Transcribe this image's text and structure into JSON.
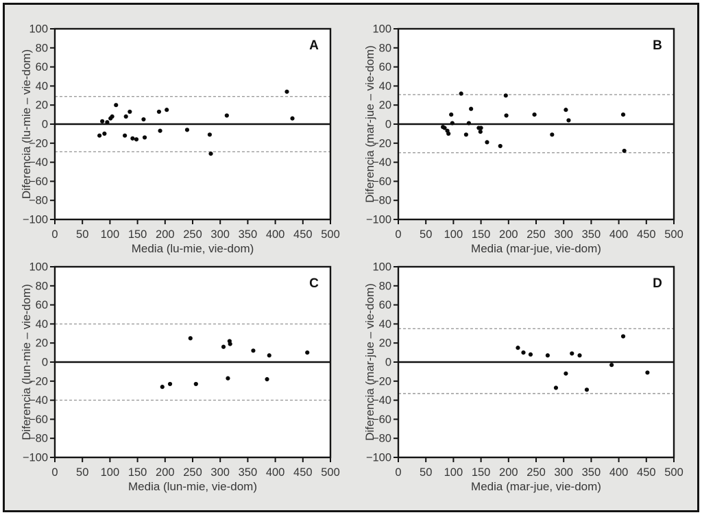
{
  "figure": {
    "background_color": "#e6e6e4",
    "frame_color": "#141414",
    "plot_background": "#ffffff",
    "point_color": "#0a0a0a",
    "mean_line_color": "#111111",
    "limit_line_color": "#9b9b9b",
    "text_color": "#363636"
  },
  "chart_data": [
    {
      "panel_label": "A",
      "type": "scatter",
      "xlabel": "Media (lu-mie, vie-dom)",
      "ylabel": "Diferencia (lu-mie – vie-dom)",
      "xlim": [
        0,
        500
      ],
      "ylim": [
        -100,
        100
      ],
      "xticks": [
        0,
        50,
        100,
        150,
        200,
        250,
        300,
        350,
        400,
        450,
        500
      ],
      "xtick_labels": [
        "0",
        "50",
        "100",
        "150",
        "200",
        "250",
        "300",
        "350",
        "400",
        "450",
        "500"
      ],
      "yticks": [
        100,
        80,
        60,
        40,
        20,
        0,
        -20,
        -40,
        -60,
        -80,
        -100
      ],
      "ytick_labels": [
        "100",
        "80",
        "60",
        "40",
        "20",
        "0",
        "−20",
        "−40",
        "−60",
        "−80",
        "−100"
      ],
      "grid": false,
      "legend": "none",
      "mean_line": 0,
      "upper_limit": 29,
      "lower_limit": -29,
      "points": [
        [
          81,
          -12
        ],
        [
          86,
          3
        ],
        [
          90,
          -10
        ],
        [
          95,
          2
        ],
        [
          101,
          6
        ],
        [
          104,
          8
        ],
        [
          111,
          20
        ],
        [
          127,
          -12
        ],
        [
          129,
          8
        ],
        [
          136,
          13
        ],
        [
          141,
          -15
        ],
        [
          148,
          -16
        ],
        [
          161,
          5
        ],
        [
          163,
          -14
        ],
        [
          189,
          13
        ],
        [
          191,
          -7
        ],
        [
          203,
          15
        ],
        [
          240,
          -6
        ],
        [
          281,
          -11
        ],
        [
          283,
          -31
        ],
        [
          312,
          9
        ],
        [
          421,
          34
        ],
        [
          431,
          6
        ]
      ]
    },
    {
      "panel_label": "B",
      "type": "scatter",
      "xlabel": "Media (mar-jue, vie-dom)",
      "ylabel": "Diferencia (mar-jue – vie-dom)",
      "xlim": [
        0,
        500
      ],
      "ylim": [
        -100,
        100
      ],
      "xticks": [
        0,
        50,
        100,
        150,
        200,
        250,
        300,
        350,
        400,
        450,
        500
      ],
      "xtick_labels": [
        "0",
        "50",
        "100",
        "150",
        "200",
        "250",
        "300",
        "350",
        "400",
        "450",
        "500"
      ],
      "yticks": [
        100,
        80,
        60,
        40,
        20,
        0,
        -20,
        -40,
        -60,
        -80,
        -100
      ],
      "ytick_labels": [
        "100",
        "80",
        "60",
        "40",
        "20",
        "0",
        "−20",
        "−40",
        "−60",
        "−80",
        "−100"
      ],
      "grid": false,
      "legend": "none",
      "mean_line": 0,
      "upper_limit": 31,
      "lower_limit": -30,
      "points": [
        [
          81,
          -3
        ],
        [
          84,
          -4
        ],
        [
          89,
          -7
        ],
        [
          91,
          -10
        ],
        [
          96,
          10
        ],
        [
          98,
          1
        ],
        [
          114,
          32
        ],
        [
          123,
          -11
        ],
        [
          128,
          1
        ],
        [
          132,
          16
        ],
        [
          146,
          -4
        ],
        [
          149,
          -8
        ],
        [
          150,
          -4
        ],
        [
          161,
          -19
        ],
        [
          185,
          -23
        ],
        [
          195,
          30
        ],
        [
          196,
          9
        ],
        [
          247,
          10
        ],
        [
          279,
          -11
        ],
        [
          304,
          15
        ],
        [
          309,
          4
        ],
        [
          408,
          10
        ],
        [
          410,
          -28
        ]
      ]
    },
    {
      "panel_label": "C",
      "type": "scatter",
      "xlabel": "Media (lun-mie, vie-dom)",
      "ylabel": "Diferencia (lun-mie – vie-dom)",
      "xlim": [
        0,
        500
      ],
      "ylim": [
        -100,
        100
      ],
      "xticks": [
        0,
        50,
        100,
        150,
        200,
        250,
        300,
        350,
        400,
        450,
        500
      ],
      "xtick_labels": [
        "0",
        "50",
        "100",
        "150",
        "200",
        "250",
        "300",
        "350",
        "400",
        "450",
        "500"
      ],
      "yticks": [
        100,
        80,
        60,
        40,
        20,
        0,
        -20,
        -40,
        -60,
        -80,
        -100
      ],
      "ytick_labels": [
        "100",
        "80",
        "60",
        "40",
        "20",
        "0",
        "−20",
        "−40",
        "−60",
        "−80",
        "−100"
      ],
      "grid": false,
      "legend": "none",
      "mean_line": 0,
      "upper_limit": 40,
      "lower_limit": -40,
      "points": [
        [
          195,
          -26
        ],
        [
          209,
          -23
        ],
        [
          246,
          25
        ],
        [
          256,
          -23
        ],
        [
          306,
          16
        ],
        [
          314,
          -17
        ],
        [
          317,
          22
        ],
        [
          318,
          19
        ],
        [
          360,
          12
        ],
        [
          385,
          -18
        ],
        [
          389,
          7
        ],
        [
          458,
          10
        ]
      ]
    },
    {
      "panel_label": "D",
      "type": "scatter",
      "xlabel": "Media (mar-jue, vie-dom)",
      "ylabel": "Diferencia (mar-jue – vie-dom)",
      "xlim": [
        0,
        500
      ],
      "ylim": [
        -100,
        100
      ],
      "xticks": [
        0,
        50,
        100,
        150,
        200,
        250,
        300,
        350,
        400,
        450,
        500
      ],
      "xtick_labels": [
        "0",
        "50",
        "100",
        "150",
        "200",
        "250",
        "300",
        "350",
        "400",
        "450",
        "500"
      ],
      "yticks": [
        100,
        80,
        60,
        40,
        20,
        0,
        -20,
        -40,
        -60,
        -80,
        -100
      ],
      "ytick_labels": [
        "100",
        "80",
        "60",
        "40",
        "20",
        "0",
        "−20",
        "−40",
        "−60",
        "−80",
        "−100"
      ],
      "grid": false,
      "legend": "none",
      "mean_line": 0,
      "upper_limit": 35,
      "lower_limit": -33,
      "points": [
        [
          217,
          15
        ],
        [
          227,
          10
        ],
        [
          240,
          8
        ],
        [
          271,
          7
        ],
        [
          286,
          -27
        ],
        [
          304,
          -12
        ],
        [
          315,
          9
        ],
        [
          329,
          7
        ],
        [
          342,
          -29
        ],
        [
          387,
          -3
        ],
        [
          408,
          27
        ],
        [
          452,
          -11
        ]
      ]
    }
  ]
}
